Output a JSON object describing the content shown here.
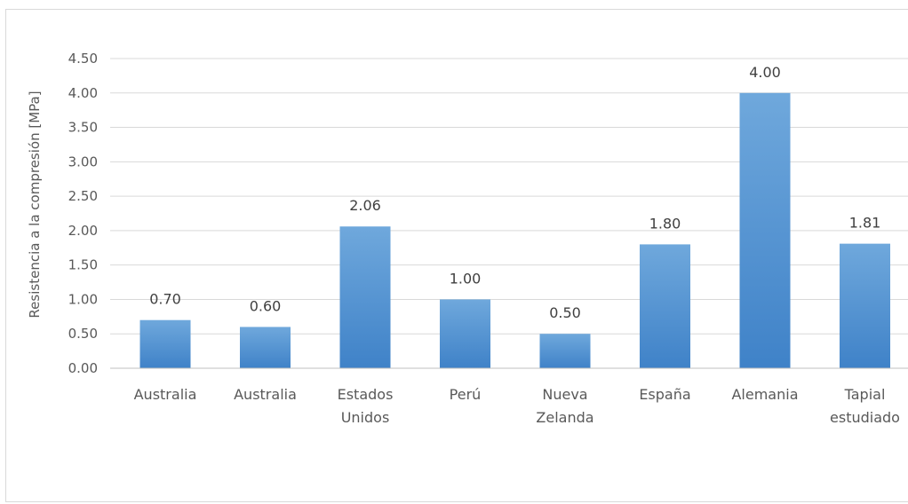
{
  "chart_data": {
    "type": "bar",
    "title": "",
    "xlabel": "",
    "ylabel": "Resistencia a la compresión [MPa]",
    "ylim": [
      0,
      4.5
    ],
    "yticks": [
      "0.00",
      "0.50",
      "1.00",
      "1.50",
      "2.00",
      "2.50",
      "3.00",
      "3.50",
      "4.00",
      "4.50"
    ],
    "grid": true,
    "legend": "none",
    "bar_color": "#5B9BD5",
    "categories": [
      [
        "Australia"
      ],
      [
        "Australia"
      ],
      [
        "Estados",
        "Unidos"
      ],
      [
        "Perú"
      ],
      [
        "Nueva",
        "Zelanda"
      ],
      [
        "España"
      ],
      [
        "Alemania"
      ],
      [
        "Tapial",
        "estudiado"
      ]
    ],
    "values": [
      0.7,
      0.6,
      2.06,
      1.0,
      0.5,
      1.8,
      4.0,
      1.81
    ],
    "data_labels": [
      "0.70",
      "0.60",
      "2.06",
      "1.00",
      "0.50",
      "1.80",
      "4.00",
      "1.81"
    ]
  }
}
